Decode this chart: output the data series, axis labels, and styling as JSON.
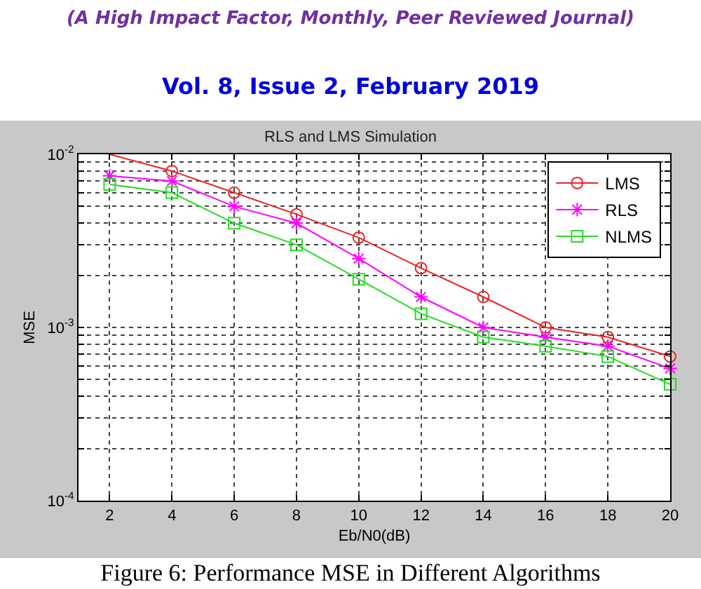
{
  "chart_data": {
    "type": "line",
    "title": "RLS and LMS Simulation",
    "xlabel": "Eb/N0(dB)",
    "ylabel": "MSE",
    "x": [
      2,
      4,
      6,
      8,
      10,
      12,
      14,
      16,
      18,
      20
    ],
    "series": [
      {
        "name": "LMS",
        "color": "#ee2222",
        "marker": "circle",
        "values": [
          0.01,
          0.008,
          0.006,
          0.0045,
          0.0033,
          0.0022,
          0.0015,
          0.001,
          0.00088,
          0.00068
        ]
      },
      {
        "name": "RLS",
        "color": "#ff00ff",
        "marker": "cross",
        "values": [
          0.0075,
          0.007,
          0.005,
          0.004,
          0.0025,
          0.0015,
          0.001,
          0.00088,
          0.00078,
          0.00058
        ]
      },
      {
        "name": "NLMS",
        "color": "#22dd22",
        "marker": "square",
        "values": [
          0.0067,
          0.006,
          0.004,
          0.003,
          0.0019,
          0.0012,
          0.00088,
          0.00078,
          0.00068,
          0.00047
        ]
      }
    ],
    "xlim": [
      1,
      20
    ],
    "xticks": [
      2,
      4,
      6,
      8,
      10,
      12,
      14,
      16,
      18,
      20
    ],
    "log": true,
    "ylim": [
      0.0001,
      0.01
    ],
    "yticks": [
      {
        "value": 0.0001,
        "label": "10$^{-4}$"
      },
      {
        "value": 0.0002,
        "label": null
      },
      {
        "value": 0.0003,
        "label": null
      },
      {
        "value": 0.0004,
        "label": null
      },
      {
        "value": 0.0005,
        "label": null
      },
      {
        "value": 0.0006,
        "label": null
      },
      {
        "value": 0.0007,
        "label": null
      },
      {
        "value": 0.0008,
        "label": null
      },
      {
        "value": 0.0009,
        "label": null
      },
      {
        "value": 0.001,
        "label": "10$^{-3}$"
      },
      {
        "value": 0.002,
        "label": null
      },
      {
        "value": 0.003,
        "label": null
      },
      {
        "value": 0.004,
        "label": null
      },
      {
        "value": 0.005,
        "label": null
      },
      {
        "value": 0.006,
        "label": null
      },
      {
        "value": 0.007,
        "label": null
      },
      {
        "value": 0.008,
        "label": null
      },
      {
        "value": 0.009,
        "label": null
      },
      {
        "value": 0.01,
        "label": "10$^{-2}$"
      }
    ],
    "grid": true,
    "legend": "top right",
    "line_style": "solid",
    "annotations": [
      "(A High Impact Factor, Monthly, Peer Reviewed Journal)",
      "Vol. 8, Issue 2, February 2019",
      "Figure 6: Performance MSE in Different Algorithms"
    ]
  }
}
